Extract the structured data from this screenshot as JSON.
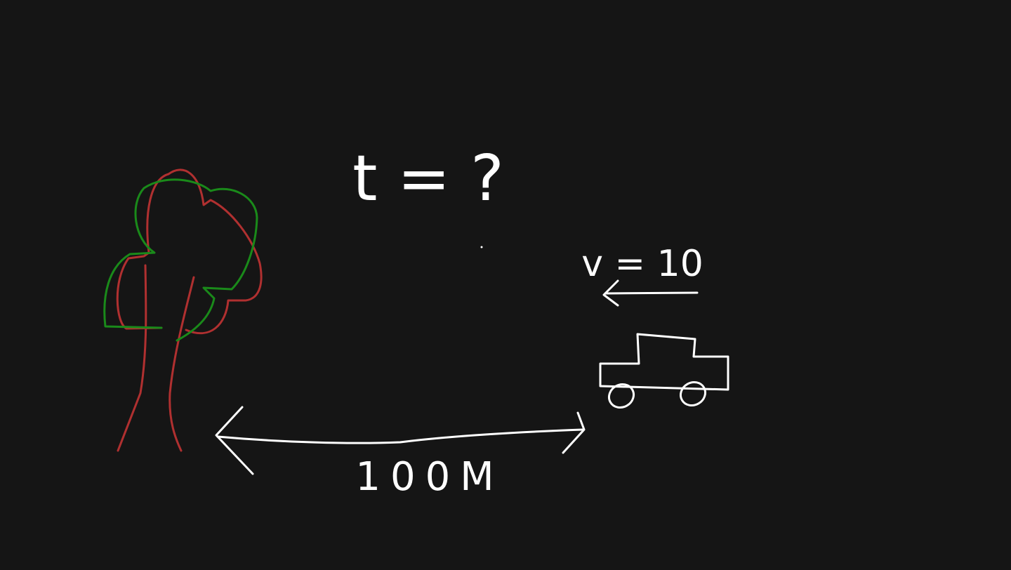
{
  "labels": {
    "question": "t = ?",
    "velocity": "v = 10",
    "distance": "100M"
  }
}
